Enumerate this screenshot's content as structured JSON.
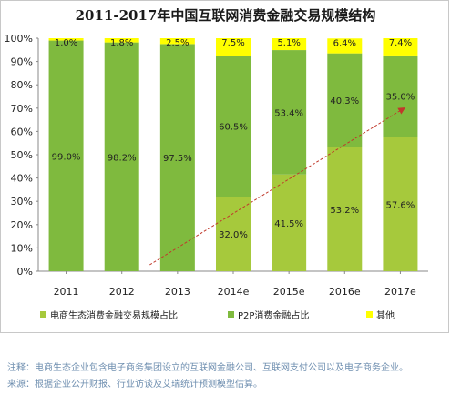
{
  "chart_data": {
    "type": "bar",
    "stacked": true,
    "title": "2011-2017年中国互联网消费金融交易规模结构",
    "categories": [
      "2011",
      "2012",
      "2013",
      "2014e",
      "2015e",
      "2016e",
      "2017e"
    ],
    "series": [
      {
        "name": "电商生态消费金融交易规模占比",
        "color": "#a6c93c",
        "values": [
          0,
          0,
          0,
          32.0,
          41.5,
          53.2,
          57.6
        ]
      },
      {
        "name": "P2P消费金融占比",
        "color": "#7fba3e",
        "values": [
          99.0,
          98.2,
          97.5,
          60.5,
          53.4,
          40.3,
          35.0
        ]
      },
      {
        "name": "其他",
        "color": "#ffff00",
        "values": [
          1.0,
          1.8,
          2.5,
          7.5,
          5.1,
          6.4,
          7.4
        ]
      }
    ],
    "ylim": [
      0,
      100
    ],
    "yticks": [
      "0%",
      "10%",
      "20%",
      "30%",
      "40%",
      "50%",
      "60%",
      "70%",
      "80%",
      "90%",
      "100%"
    ],
    "grid": false,
    "legend_position": "bottom",
    "trend_line": {
      "style": "dashed",
      "color": "#c0392b",
      "arrow": true
    }
  },
  "notes": {
    "line1": "注释：电商生态企业包含电子商务集团设立的互联网金融公司、互联网支付公司以及电子商务企业。",
    "line2": "来源：根据企业公开财报、行业访谈及艾瑞统计预测模型估算。"
  }
}
